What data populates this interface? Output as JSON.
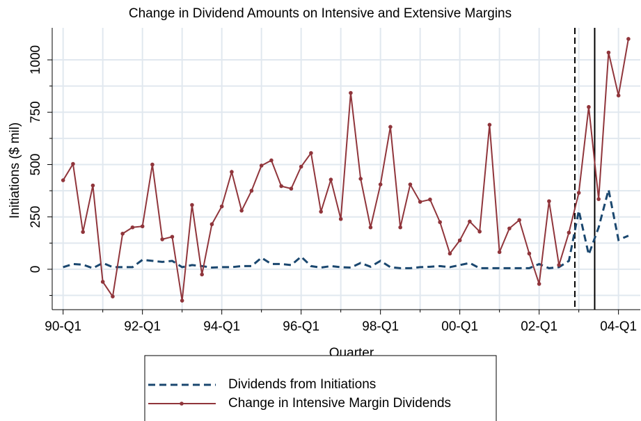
{
  "chart_data": {
    "type": "line",
    "title": "Change in Dividend Amounts on Intensive and Extensive Margins",
    "x_label": "Quarter",
    "y_label": "Initiations ($ mil)",
    "x": [
      0,
      1,
      2,
      3,
      4,
      5,
      6,
      7,
      8,
      9,
      10,
      11,
      12,
      13,
      14,
      15,
      16,
      17,
      18,
      19,
      20,
      21,
      22,
      23,
      24,
      25,
      26,
      27,
      28,
      29,
      30,
      31,
      32,
      33,
      34,
      35,
      36,
      37,
      38,
      39,
      40,
      41,
      42,
      43,
      44,
      45,
      46,
      47,
      48,
      49,
      50,
      51,
      52,
      53,
      54,
      55,
      56,
      57
    ],
    "series": [
      {
        "name": "Dividends from Initiations",
        "color": "#1a476f",
        "dash": true,
        "markers": false,
        "values": [
          10,
          25,
          22,
          5,
          30,
          10,
          10,
          10,
          45,
          40,
          35,
          40,
          10,
          20,
          15,
          8,
          10,
          10,
          15,
          15,
          55,
          25,
          25,
          20,
          60,
          15,
          8,
          15,
          10,
          8,
          30,
          12,
          40,
          10,
          5,
          5,
          10,
          12,
          15,
          10,
          20,
          30,
          5,
          5,
          5,
          5,
          5,
          5,
          25,
          5,
          10,
          40,
          280,
          70,
          200,
          380,
          140,
          160
        ]
      },
      {
        "name": "Change in Intensive Margin Dividends",
        "color": "#90353b",
        "dash": false,
        "markers": true,
        "values": [
          425,
          503,
          178,
          400,
          -60,
          -130,
          170,
          200,
          205,
          500,
          143,
          155,
          -150,
          307,
          -25,
          215,
          300,
          465,
          280,
          375,
          495,
          520,
          397,
          385,
          490,
          555,
          275,
          428,
          240,
          842,
          432,
          200,
          405,
          680,
          200,
          405,
          322,
          333,
          225,
          75,
          138,
          228,
          180,
          690,
          82,
          195,
          235,
          75,
          -70,
          325,
          20,
          175,
          365,
          775,
          335,
          1035,
          830,
          1100
        ]
      }
    ],
    "xlim": [
      -1.1,
      58.2
    ],
    "ylim": [
      -193,
      1153
    ],
    "xticks": [
      {
        "value": 0,
        "label": "90-Q1"
      },
      {
        "value": 8,
        "label": "92-Q1"
      },
      {
        "value": 16,
        "label": "94-Q1"
      },
      {
        "value": 24,
        "label": "96-Q1"
      },
      {
        "value": 32,
        "label": "98-Q1"
      },
      {
        "value": 40,
        "label": "00-Q1"
      },
      {
        "value": 48,
        "label": "02-Q1"
      },
      {
        "value": 56,
        "label": "04-Q1"
      }
    ],
    "xminor": [
      4,
      12,
      20,
      28,
      36,
      44,
      52
    ],
    "yticks": [
      0,
      250,
      500,
      750,
      1000
    ],
    "yminor": [
      -125,
      125,
      375,
      625,
      875
    ],
    "vlines": [
      {
        "x": 51.6,
        "dash": true
      },
      {
        "x": 53.6,
        "dash": false
      }
    ],
    "grid": true
  }
}
